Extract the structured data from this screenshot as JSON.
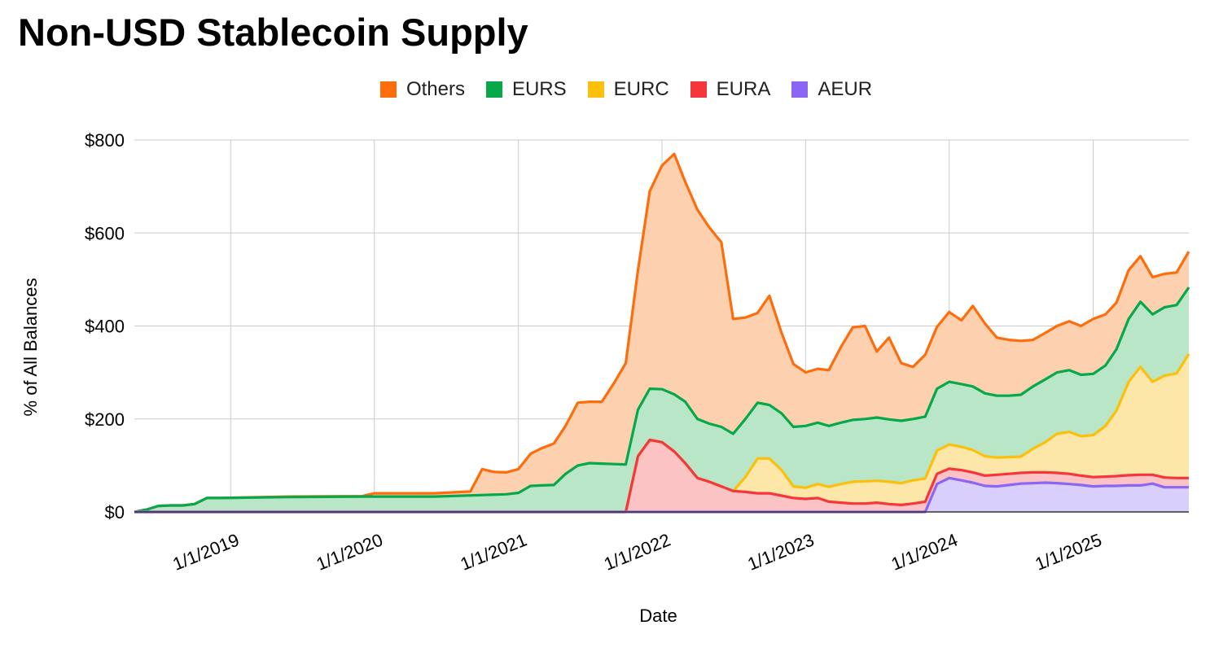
{
  "chart_data": {
    "type": "area",
    "stacked": true,
    "title": "Non-USD Stablecoin Supply",
    "xlabel": "Date",
    "ylabel": "% of All Balances",
    "ylim": [
      0,
      800
    ],
    "yticks": [
      0,
      200,
      400,
      600,
      800
    ],
    "ytick_labels": [
      "$0",
      "$200",
      "$400",
      "$600",
      "$800"
    ],
    "xticks": [
      "2019-01-01",
      "2020-01-01",
      "2021-01-01",
      "2022-01-01",
      "2023-01-01",
      "2024-01-01",
      "2025-01-01"
    ],
    "xtick_labels": [
      "1/1/2019",
      "1/1/2020",
      "1/1/2021",
      "1/1/2022",
      "1/1/2023",
      "1/1/2024",
      "1/1/2025"
    ],
    "xlim": [
      "2018-05-01",
      "2025-09-01"
    ],
    "grid": true,
    "legend_position": "top",
    "series": [
      {
        "name": "AEUR",
        "color": "#8B66F5",
        "fill": "#D9CFFC",
        "points": [
          [
            "2018-05-01",
            0
          ],
          [
            "2023-11-01",
            0
          ],
          [
            "2023-12-01",
            60
          ],
          [
            "2024-01-01",
            73
          ],
          [
            "2024-02-01",
            68
          ],
          [
            "2024-03-01",
            63
          ],
          [
            "2024-04-01",
            56
          ],
          [
            "2024-05-01",
            55
          ],
          [
            "2024-06-01",
            58
          ],
          [
            "2024-07-01",
            61
          ],
          [
            "2024-08-01",
            62
          ],
          [
            "2024-09-01",
            63
          ],
          [
            "2024-10-01",
            62
          ],
          [
            "2024-11-01",
            60
          ],
          [
            "2024-12-01",
            58
          ],
          [
            "2025-01-01",
            55
          ],
          [
            "2025-02-01",
            56
          ],
          [
            "2025-03-01",
            56
          ],
          [
            "2025-04-01",
            57
          ],
          [
            "2025-05-01",
            57
          ],
          [
            "2025-06-01",
            61
          ],
          [
            "2025-07-01",
            53
          ],
          [
            "2025-08-01",
            53
          ],
          [
            "2025-09-01",
            53
          ]
        ]
      },
      {
        "name": "EURA",
        "color": "#F5363B",
        "fill": "#FCC3C4",
        "points": [
          [
            "2018-05-01",
            0
          ],
          [
            "2021-10-01",
            0
          ],
          [
            "2021-11-01",
            120
          ],
          [
            "2021-12-01",
            155
          ],
          [
            "2022-01-01",
            150
          ],
          [
            "2022-02-01",
            130
          ],
          [
            "2022-03-01",
            105
          ],
          [
            "2022-04-01",
            73
          ],
          [
            "2022-05-01",
            65
          ],
          [
            "2022-06-01",
            55
          ],
          [
            "2022-07-01",
            45
          ],
          [
            "2022-08-01",
            43
          ],
          [
            "2022-09-01",
            40
          ],
          [
            "2022-10-01",
            40
          ],
          [
            "2022-11-01",
            35
          ],
          [
            "2022-12-01",
            30
          ],
          [
            "2023-01-01",
            28
          ],
          [
            "2023-02-01",
            30
          ],
          [
            "2023-03-01",
            22
          ],
          [
            "2023-04-01",
            20
          ],
          [
            "2023-05-01",
            18
          ],
          [
            "2023-06-01",
            18
          ],
          [
            "2023-07-01",
            20
          ],
          [
            "2023-08-01",
            17
          ],
          [
            "2023-09-01",
            15
          ],
          [
            "2023-10-01",
            18
          ],
          [
            "2023-11-01",
            22
          ],
          [
            "2023-12-01",
            82
          ],
          [
            "2024-01-01",
            93
          ],
          [
            "2024-02-01",
            90
          ],
          [
            "2024-03-01",
            85
          ],
          [
            "2024-04-01",
            78
          ],
          [
            "2024-05-01",
            80
          ],
          [
            "2024-06-01",
            82
          ],
          [
            "2024-07-01",
            84
          ],
          [
            "2024-08-01",
            85
          ],
          [
            "2024-09-01",
            85
          ],
          [
            "2024-10-01",
            84
          ],
          [
            "2024-11-01",
            82
          ],
          [
            "2024-12-01",
            78
          ],
          [
            "2025-01-01",
            75
          ],
          [
            "2025-02-01",
            76
          ],
          [
            "2025-03-01",
            77
          ],
          [
            "2025-04-01",
            79
          ],
          [
            "2025-05-01",
            80
          ],
          [
            "2025-06-01",
            80
          ],
          [
            "2025-07-01",
            74
          ],
          [
            "2025-08-01",
            73
          ],
          [
            "2025-09-01",
            73
          ]
        ]
      },
      {
        "name": "EURC",
        "color": "#FCC00C",
        "fill": "#FDE7A8",
        "points": [
          [
            "2018-05-01",
            0
          ],
          [
            "2021-10-01",
            0
          ],
          [
            "2021-11-01",
            120
          ],
          [
            "2021-12-01",
            155
          ],
          [
            "2022-01-01",
            150
          ],
          [
            "2022-02-01",
            130
          ],
          [
            "2022-03-01",
            105
          ],
          [
            "2022-04-01",
            73
          ],
          [
            "2022-05-01",
            65
          ],
          [
            "2022-06-01",
            55
          ],
          [
            "2022-07-01",
            45
          ],
          [
            "2022-08-01",
            75
          ],
          [
            "2022-09-01",
            115
          ],
          [
            "2022-10-01",
            115
          ],
          [
            "2022-11-01",
            90
          ],
          [
            "2022-12-01",
            55
          ],
          [
            "2023-01-01",
            52
          ],
          [
            "2023-02-01",
            60
          ],
          [
            "2023-03-01",
            54
          ],
          [
            "2023-04-01",
            60
          ],
          [
            "2023-05-01",
            65
          ],
          [
            "2023-06-01",
            66
          ],
          [
            "2023-07-01",
            67
          ],
          [
            "2023-08-01",
            65
          ],
          [
            "2023-09-01",
            62
          ],
          [
            "2023-10-01",
            68
          ],
          [
            "2023-11-01",
            72
          ],
          [
            "2023-12-01",
            132
          ],
          [
            "2024-01-01",
            145
          ],
          [
            "2024-02-01",
            140
          ],
          [
            "2024-03-01",
            133
          ],
          [
            "2024-04-01",
            120
          ],
          [
            "2024-05-01",
            117
          ],
          [
            "2024-06-01",
            118
          ],
          [
            "2024-07-01",
            119
          ],
          [
            "2024-08-01",
            136
          ],
          [
            "2024-09-01",
            150
          ],
          [
            "2024-10-01",
            168
          ],
          [
            "2024-11-01",
            172
          ],
          [
            "2024-12-01",
            163
          ],
          [
            "2025-01-01",
            165
          ],
          [
            "2025-02-01",
            185
          ],
          [
            "2025-03-01",
            218
          ],
          [
            "2025-04-01",
            280
          ],
          [
            "2025-05-01",
            312
          ],
          [
            "2025-06-01",
            280
          ],
          [
            "2025-07-01",
            293
          ],
          [
            "2025-08-01",
            298
          ],
          [
            "2025-09-01",
            340
          ]
        ]
      },
      {
        "name": "EURS",
        "color": "#06A84A",
        "fill": "#B8E6C7",
        "points": [
          [
            "2018-05-01",
            0
          ],
          [
            "2018-06-01",
            5
          ],
          [
            "2018-07-01",
            13
          ],
          [
            "2018-08-01",
            14
          ],
          [
            "2018-09-01",
            14
          ],
          [
            "2018-10-01",
            17
          ],
          [
            "2018-11-01",
            30
          ],
          [
            "2018-12-01",
            30
          ],
          [
            "2019-06-01",
            32
          ],
          [
            "2019-12-01",
            33
          ],
          [
            "2020-06-01",
            33
          ],
          [
            "2020-12-01",
            38
          ],
          [
            "2021-01-01",
            41
          ],
          [
            "2021-02-01",
            56
          ],
          [
            "2021-03-01",
            57
          ],
          [
            "2021-04-01",
            58
          ],
          [
            "2021-05-01",
            82
          ],
          [
            "2021-06-01",
            100
          ],
          [
            "2021-07-01",
            105
          ],
          [
            "2021-08-01",
            104
          ],
          [
            "2021-09-01",
            103
          ],
          [
            "2021-10-01",
            102
          ],
          [
            "2021-11-01",
            220
          ],
          [
            "2021-12-01",
            265
          ],
          [
            "2022-01-01",
            264
          ],
          [
            "2022-02-01",
            253
          ],
          [
            "2022-03-01",
            237
          ],
          [
            "2022-04-01",
            200
          ],
          [
            "2022-05-01",
            190
          ],
          [
            "2022-06-01",
            183
          ],
          [
            "2022-07-01",
            168
          ],
          [
            "2022-08-01",
            200
          ],
          [
            "2022-09-01",
            235
          ],
          [
            "2022-10-01",
            230
          ],
          [
            "2022-11-01",
            212
          ],
          [
            "2022-12-01",
            183
          ],
          [
            "2023-01-01",
            185
          ],
          [
            "2023-02-01",
            192
          ],
          [
            "2023-03-01",
            185
          ],
          [
            "2023-04-01",
            192
          ],
          [
            "2023-05-01",
            198
          ],
          [
            "2023-06-01",
            200
          ],
          [
            "2023-07-01",
            203
          ],
          [
            "2023-08-01",
            199
          ],
          [
            "2023-09-01",
            196
          ],
          [
            "2023-10-01",
            200
          ],
          [
            "2023-11-01",
            205
          ],
          [
            "2023-12-01",
            265
          ],
          [
            "2024-01-01",
            280
          ],
          [
            "2024-02-01",
            275
          ],
          [
            "2024-03-01",
            270
          ],
          [
            "2024-04-01",
            255
          ],
          [
            "2024-05-01",
            250
          ],
          [
            "2024-06-01",
            250
          ],
          [
            "2024-07-01",
            252
          ],
          [
            "2024-08-01",
            270
          ],
          [
            "2024-09-01",
            285
          ],
          [
            "2024-10-01",
            300
          ],
          [
            "2024-11-01",
            305
          ],
          [
            "2024-12-01",
            295
          ],
          [
            "2025-01-01",
            297
          ],
          [
            "2025-02-01",
            315
          ],
          [
            "2025-03-01",
            350
          ],
          [
            "2025-04-01",
            415
          ],
          [
            "2025-05-01",
            452
          ],
          [
            "2025-06-01",
            425
          ],
          [
            "2025-07-01",
            440
          ],
          [
            "2025-08-01",
            445
          ],
          [
            "2025-09-01",
            483
          ]
        ]
      },
      {
        "name": "Others",
        "color": "#FE6D0B",
        "fill": "#FDD1B0",
        "points": [
          [
            "2018-05-01",
            0
          ],
          [
            "2018-06-01",
            5
          ],
          [
            "2018-07-01",
            13
          ],
          [
            "2018-08-01",
            14
          ],
          [
            "2018-09-01",
            14
          ],
          [
            "2018-10-01",
            17
          ],
          [
            "2018-11-01",
            30
          ],
          [
            "2018-12-01",
            30
          ],
          [
            "2019-06-01",
            33
          ],
          [
            "2019-12-01",
            34
          ],
          [
            "2020-01-01",
            40
          ],
          [
            "2020-06-01",
            40
          ],
          [
            "2020-09-01",
            44
          ],
          [
            "2020-10-01",
            92
          ],
          [
            "2020-11-01",
            86
          ],
          [
            "2020-12-01",
            85
          ],
          [
            "2021-01-01",
            92
          ],
          [
            "2021-02-01",
            125
          ],
          [
            "2021-03-01",
            137
          ],
          [
            "2021-04-01",
            147
          ],
          [
            "2021-05-01",
            185
          ],
          [
            "2021-06-01",
            235
          ],
          [
            "2021-07-01",
            237
          ],
          [
            "2021-08-01",
            237
          ],
          [
            "2021-09-01",
            277
          ],
          [
            "2021-10-01",
            320
          ],
          [
            "2021-11-01",
            520
          ],
          [
            "2021-12-01",
            690
          ],
          [
            "2022-01-01",
            745
          ],
          [
            "2022-02-01",
            770
          ],
          [
            "2022-03-01",
            710
          ],
          [
            "2022-04-01",
            650
          ],
          [
            "2022-05-01",
            612
          ],
          [
            "2022-06-01",
            580
          ],
          [
            "2022-07-01",
            415
          ],
          [
            "2022-08-01",
            418
          ],
          [
            "2022-09-01",
            428
          ],
          [
            "2022-10-01",
            465
          ],
          [
            "2022-11-01",
            385
          ],
          [
            "2022-12-01",
            318
          ],
          [
            "2023-01-01",
            300
          ],
          [
            "2023-02-01",
            308
          ],
          [
            "2023-03-01",
            305
          ],
          [
            "2023-04-01",
            355
          ],
          [
            "2023-05-01",
            397
          ],
          [
            "2023-06-01",
            400
          ],
          [
            "2023-07-01",
            345
          ],
          [
            "2023-08-01",
            375
          ],
          [
            "2023-09-01",
            320
          ],
          [
            "2023-10-01",
            312
          ],
          [
            "2023-11-01",
            338
          ],
          [
            "2023-12-01",
            398
          ],
          [
            "2024-01-01",
            430
          ],
          [
            "2024-02-01",
            412
          ],
          [
            "2024-03-01",
            443
          ],
          [
            "2024-04-01",
            405
          ],
          [
            "2024-05-01",
            375
          ],
          [
            "2024-06-01",
            370
          ],
          [
            "2024-07-01",
            368
          ],
          [
            "2024-08-01",
            370
          ],
          [
            "2024-09-01",
            385
          ],
          [
            "2024-10-01",
            400
          ],
          [
            "2024-11-01",
            410
          ],
          [
            "2024-12-01",
            400
          ],
          [
            "2025-01-01",
            415
          ],
          [
            "2025-02-01",
            425
          ],
          [
            "2025-03-01",
            450
          ],
          [
            "2025-04-01",
            520
          ],
          [
            "2025-05-01",
            550
          ],
          [
            "2025-06-01",
            505
          ],
          [
            "2025-07-01",
            512
          ],
          [
            "2025-08-01",
            515
          ],
          [
            "2025-09-01",
            560
          ]
        ]
      }
    ],
    "legend": [
      "Others",
      "EURS",
      "EURC",
      "EURA",
      "AEUR"
    ]
  }
}
